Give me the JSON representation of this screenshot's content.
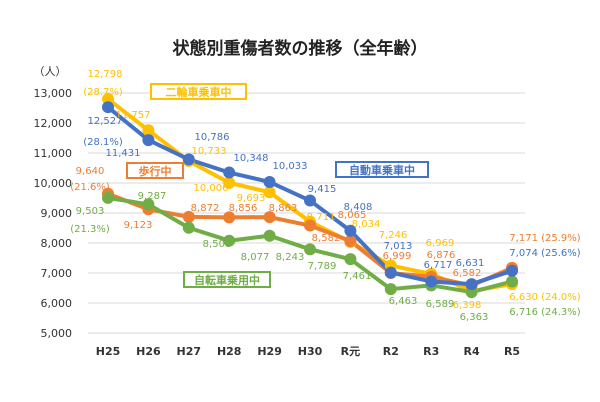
{
  "chart_data": {
    "type": "line",
    "title": "状態別重傷者数の推移（全年齢）",
    "ylabel": "（人）",
    "ylim": [
      5000,
      13000
    ],
    "yticks": [
      5000,
      6000,
      7000,
      8000,
      9000,
      10000,
      11000,
      12000,
      13000
    ],
    "ytick_labels": [
      "5,000",
      "6,000",
      "7,000",
      "8,000",
      "9,000",
      "10,000",
      "11,000",
      "12,000",
      "13,000"
    ],
    "categories": [
      "H25",
      "H26",
      "H27",
      "H28",
      "H29",
      "H30",
      "R元",
      "R2",
      "R3",
      "R4",
      "R5"
    ],
    "grid": true,
    "series": [
      {
        "name": "二輪車乗車中",
        "color": "#ffc000",
        "values": [
          12798,
          11757,
          10733,
          10006,
          9693,
          8711,
          8034,
          7246,
          6969,
          6398,
          6630
        ],
        "labels": [
          "12,798",
          "11,757",
          "10,733",
          "10,006",
          "9,693",
          "8,711",
          "8,034",
          "7,246",
          "6,969",
          "6,398",
          "6,630 (24.0%)"
        ],
        "first_share": "(28.7%)"
      },
      {
        "name": "歩行中",
        "color": "#ed7d31",
        "values": [
          9640,
          9123,
          8872,
          8856,
          8863,
          8582,
          8065,
          6999,
          6876,
          6582,
          7171
        ],
        "labels": [
          "9,640",
          "9,123",
          "8,872",
          "8,856",
          "8,863",
          "8,582",
          "8,065",
          "6,999",
          "6,876",
          "6,582",
          "7,171 (25.9%)"
        ],
        "first_share": "(21.6%)"
      },
      {
        "name": "自転車乗用中",
        "color": "#70ad47",
        "values": [
          9503,
          9287,
          8508,
          8077,
          8243,
          7789,
          7461,
          6463,
          6589,
          6363,
          6716
        ],
        "labels": [
          "9,503",
          "9,287",
          "8,508",
          "8,077",
          "8,243",
          "7,789",
          "7,461",
          "6,463",
          "6,589",
          "6,363",
          "6,716 (24.3%)"
        ],
        "first_share": "(21.3%)"
      },
      {
        "name": "自動車乗車中",
        "color": "#4472c4",
        "values": [
          12527,
          11431,
          10786,
          10348,
          10033,
          9415,
          8408,
          7013,
          6717,
          6631,
          7074
        ],
        "labels": [
          "12,527",
          "11,431",
          "10,786",
          "10,348",
          "10,033",
          "9,415",
          "8,408",
          "7,013",
          "6,717",
          "6,631",
          "7,074 (25.6%)"
        ],
        "first_share": "(28.1%)"
      }
    ]
  }
}
